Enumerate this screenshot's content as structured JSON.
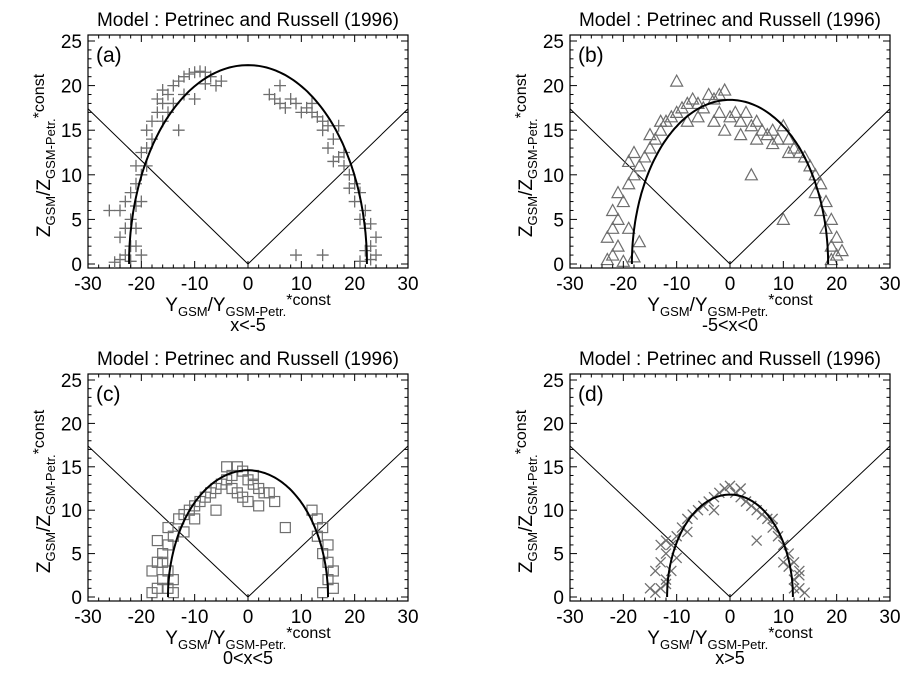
{
  "panel_title_model": "Model : Petrinec and Russell (1996)",
  "x_axis_main": "Y",
  "x_axis_sub1": "GSM",
  "x_axis_mid": "/Y",
  "x_axis_sub2": "GSM-Petr.",
  "x_axis_tail": "*const",
  "y_axis_main": "Z",
  "y_axis_sub1": "GSM",
  "y_axis_mid": "/Z",
  "y_axis_sub2": "GSM-Petr.",
  "y_axis_tail": "*const",
  "colors": {
    "points": "#6e6e6e",
    "curve": "#000000",
    "axes": "#000000"
  },
  "chart_data": [
    {
      "type": "scatter",
      "panel_label": "(a)",
      "title": "Model : Petrinec and Russell (1996)",
      "condition": "x<-5",
      "marker": "plus",
      "xlim": [
        -30,
        30
      ],
      "ylim": [
        0,
        25
      ],
      "xticks": [
        -30,
        -20,
        -10,
        0,
        10,
        20,
        30
      ],
      "yticks": [
        0,
        5,
        10,
        15,
        20,
        25
      ],
      "model_curve_semi_axes": {
        "y": 22.3,
        "z": 22.3
      },
      "reference_lines_slope": 0.58,
      "points": [
        [
          -25,
          0.2
        ],
        [
          -24,
          0.5
        ],
        [
          -23,
          1
        ],
        [
          -22,
          2
        ],
        [
          -24,
          3
        ],
        [
          -23,
          4
        ],
        [
          -22,
          5
        ],
        [
          -24,
          6
        ],
        [
          -21,
          6.5
        ],
        [
          -22,
          8
        ],
        [
          -21,
          9
        ],
        [
          -20,
          10
        ],
        [
          -21,
          11
        ],
        [
          -20,
          12.5
        ],
        [
          -19,
          13
        ],
        [
          -18,
          14
        ],
        [
          -19,
          15
        ],
        [
          -18,
          16
        ],
        [
          -17,
          17
        ],
        [
          -16,
          18
        ],
        [
          -17,
          18.5
        ],
        [
          -15,
          19
        ],
        [
          -16,
          19.5
        ],
        [
          -14,
          20
        ],
        [
          -13,
          20.5
        ],
        [
          -12,
          21
        ],
        [
          -11,
          21.3
        ],
        [
          -10,
          21.5
        ],
        [
          -9,
          21.6
        ],
        [
          -8,
          21.5
        ],
        [
          -7,
          21
        ],
        [
          -8,
          20.2
        ],
        [
          -6,
          20
        ],
        [
          -5,
          20.5
        ],
        [
          -12,
          19
        ],
        [
          -10,
          18.5
        ],
        [
          -14,
          18
        ],
        [
          -13,
          15
        ],
        [
          -15,
          17
        ],
        [
          -16,
          16
        ],
        [
          -19,
          11
        ],
        [
          -20,
          7
        ],
        [
          -21,
          4
        ],
        [
          -26,
          6
        ],
        [
          -23,
          7
        ],
        [
          -21,
          2
        ],
        [
          -20,
          1
        ],
        [
          -22,
          0.3
        ],
        [
          4,
          19
        ],
        [
          5,
          18.5
        ],
        [
          6,
          18
        ],
        [
          7,
          17.5
        ],
        [
          8,
          18.5
        ],
        [
          9,
          18
        ],
        [
          10,
          17
        ],
        [
          11,
          17.5
        ],
        [
          12,
          17
        ],
        [
          13,
          16.5
        ],
        [
          14,
          16
        ],
        [
          15,
          15.5
        ],
        [
          14,
          15
        ],
        [
          16,
          14
        ],
        [
          15,
          13
        ],
        [
          17,
          12
        ],
        [
          16,
          11.5
        ],
        [
          18,
          11
        ],
        [
          19,
          10
        ],
        [
          20,
          9
        ],
        [
          19,
          8.5
        ],
        [
          21,
          8
        ],
        [
          20,
          7
        ],
        [
          22,
          6
        ],
        [
          21,
          5
        ],
        [
          23,
          4.5
        ],
        [
          22,
          4
        ],
        [
          24,
          3
        ],
        [
          23,
          2
        ],
        [
          22,
          1.5
        ],
        [
          24,
          1
        ],
        [
          23,
          0.5
        ],
        [
          21,
          0.3
        ],
        [
          14,
          1
        ],
        [
          9,
          1
        ],
        [
          18,
          12.5
        ],
        [
          17,
          15.5
        ],
        [
          12,
          18
        ],
        [
          6,
          20
        ]
      ]
    },
    {
      "type": "scatter",
      "panel_label": "(b)",
      "title": "Model : Petrinec and Russell (1996)",
      "condition": "-5<x<0",
      "marker": "triangle",
      "xlim": [
        -30,
        30
      ],
      "ylim": [
        0,
        25
      ],
      "xticks": [
        -30,
        -20,
        -10,
        0,
        10,
        20,
        30
      ],
      "yticks": [
        0,
        5,
        10,
        15,
        20,
        25
      ],
      "model_curve_semi_axes": {
        "y": 18.4,
        "z": 18.4
      },
      "reference_lines_slope": 0.58,
      "points": [
        [
          -23,
          0.5
        ],
        [
          -22,
          1
        ],
        [
          -21,
          2
        ],
        [
          -23,
          3
        ],
        [
          -22,
          4
        ],
        [
          -21,
          5
        ],
        [
          -22,
          6
        ],
        [
          -20,
          7
        ],
        [
          -21,
          8
        ],
        [
          -19,
          9
        ],
        [
          -18,
          10
        ],
        [
          -17,
          11
        ],
        [
          -19,
          11.5
        ],
        [
          -16,
          12
        ],
        [
          -18,
          12.5
        ],
        [
          -15,
          13
        ],
        [
          -14,
          14
        ],
        [
          -13,
          15
        ],
        [
          -12,
          16
        ],
        [
          -11,
          16.5
        ],
        [
          -10,
          17
        ],
        [
          -9,
          17.5
        ],
        [
          -10,
          20.5
        ],
        [
          -8,
          18
        ],
        [
          -7,
          18.5
        ],
        [
          -6,
          18
        ],
        [
          -5,
          17.5
        ],
        [
          -4,
          19
        ],
        [
          -3,
          18.5
        ],
        [
          -2,
          19
        ],
        [
          -1,
          19.5
        ],
        [
          -2,
          17
        ],
        [
          0,
          16.5
        ],
        [
          1,
          17
        ],
        [
          2,
          16
        ],
        [
          3,
          17
        ],
        [
          4,
          15.5
        ],
        [
          5,
          16
        ],
        [
          6,
          15
        ],
        [
          7,
          14.5
        ],
        [
          8,
          15
        ],
        [
          9,
          14
        ],
        [
          10,
          15.5
        ],
        [
          11,
          14
        ],
        [
          12,
          13
        ],
        [
          13,
          12.5
        ],
        [
          14,
          12
        ],
        [
          15,
          11
        ],
        [
          16,
          10
        ],
        [
          17,
          9
        ],
        [
          16,
          8
        ],
        [
          18,
          7
        ],
        [
          17,
          6
        ],
        [
          19,
          5
        ],
        [
          18,
          4
        ],
        [
          20,
          3
        ],
        [
          19,
          2
        ],
        [
          21,
          1.5
        ],
        [
          20,
          1
        ],
        [
          19,
          0.5
        ],
        [
          -20,
          0.3
        ],
        [
          -18,
          0.8
        ],
        [
          -15,
          14.5
        ],
        [
          -13,
          16
        ],
        [
          -8,
          16
        ],
        [
          -6,
          16.5
        ],
        [
          -3,
          16
        ],
        [
          -1,
          15
        ],
        [
          2,
          14.5
        ],
        [
          5,
          14
        ],
        [
          8,
          13.5
        ],
        [
          11,
          12.5
        ],
        [
          4,
          10
        ],
        [
          10,
          5
        ],
        [
          -17,
          2.5
        ],
        [
          -19,
          4
        ]
      ]
    },
    {
      "type": "scatter",
      "panel_label": "(c)",
      "title": "Model : Petrinec and Russell (1996)",
      "condition": "0<x<5",
      "marker": "square",
      "xlim": [
        -30,
        30
      ],
      "ylim": [
        0,
        25
      ],
      "xticks": [
        -30,
        -20,
        -10,
        0,
        10,
        20,
        30
      ],
      "yticks": [
        0,
        5,
        10,
        15,
        20,
        25
      ],
      "model_curve_semi_axes": {
        "y": 15.0,
        "z": 14.6
      },
      "reference_lines_slope": 0.58,
      "points": [
        [
          -18,
          0.5
        ],
        [
          -17,
          1
        ],
        [
          -16,
          2
        ],
        [
          -18,
          3
        ],
        [
          -17,
          4
        ],
        [
          -16,
          5
        ],
        [
          -15,
          6
        ],
        [
          -17,
          6.5
        ],
        [
          -14,
          7
        ],
        [
          -15,
          8
        ],
        [
          -13,
          9
        ],
        [
          -12,
          9.5
        ],
        [
          -11,
          10
        ],
        [
          -10,
          10.5
        ],
        [
          -9,
          11
        ],
        [
          -8,
          11.5
        ],
        [
          -7,
          12
        ],
        [
          -6,
          12.5
        ],
        [
          -5,
          13
        ],
        [
          -4,
          13.5
        ],
        [
          -3,
          14
        ],
        [
          -2,
          15
        ],
        [
          -1,
          14.5
        ],
        [
          0,
          13.5
        ],
        [
          1,
          13
        ],
        [
          2,
          12.5
        ],
        [
          3,
          12
        ],
        [
          4,
          12
        ],
        [
          5,
          11
        ],
        [
          -2,
          12
        ],
        [
          -1,
          11.5
        ],
        [
          0,
          11
        ],
        [
          2,
          10.5
        ],
        [
          -6,
          10
        ],
        [
          -10,
          9
        ],
        [
          -12,
          7.5
        ],
        [
          -16,
          4
        ],
        [
          -15,
          3
        ],
        [
          -14,
          2
        ],
        [
          -15,
          1
        ],
        [
          -14,
          0.5
        ],
        [
          12,
          10
        ],
        [
          13,
          9
        ],
        [
          14,
          8
        ],
        [
          13,
          7
        ],
        [
          15,
          6
        ],
        [
          14,
          5
        ],
        [
          15,
          4
        ],
        [
          16,
          3
        ],
        [
          15,
          2
        ],
        [
          16,
          1
        ],
        [
          14,
          0.5
        ],
        [
          7,
          8
        ],
        [
          -3,
          12.5
        ],
        [
          1,
          14
        ],
        [
          -4,
          15
        ]
      ]
    },
    {
      "type": "scatter",
      "panel_label": "(d)",
      "title": "Model : Petrinec and Russell (1996)",
      "condition": "x>5",
      "marker": "cross",
      "xlim": [
        -30,
        30
      ],
      "ylim": [
        0,
        25
      ],
      "xticks": [
        -30,
        -20,
        -10,
        0,
        10,
        20,
        30
      ],
      "yticks": [
        0,
        5,
        10,
        15,
        20,
        25
      ],
      "model_curve_semi_axes": {
        "y": 11.8,
        "z": 11.8
      },
      "reference_lines_slope": 0.58,
      "points": [
        [
          -14,
          0.5
        ],
        [
          -13,
          1
        ],
        [
          -12,
          2
        ],
        [
          -14,
          3
        ],
        [
          -13,
          4
        ],
        [
          -12,
          5
        ],
        [
          -11,
          6
        ],
        [
          -12,
          6.5
        ],
        [
          -10,
          7
        ],
        [
          -9,
          8
        ],
        [
          -8,
          9
        ],
        [
          -7,
          9.5
        ],
        [
          -6,
          10
        ],
        [
          -5,
          10.5
        ],
        [
          -4,
          11
        ],
        [
          -3,
          11.5
        ],
        [
          -2,
          12
        ],
        [
          -1,
          12.5
        ],
        [
          0,
          12.8
        ],
        [
          1,
          12
        ],
        [
          2,
          11.5
        ],
        [
          3,
          11
        ],
        [
          4,
          10.5
        ],
        [
          5,
          10
        ],
        [
          6,
          9.5
        ],
        [
          7,
          9
        ],
        [
          8,
          8
        ],
        [
          9,
          7
        ],
        [
          10,
          6
        ],
        [
          11,
          5
        ],
        [
          12,
          4
        ],
        [
          13,
          3
        ],
        [
          12,
          2
        ],
        [
          13,
          1
        ],
        [
          14,
          0.5
        ],
        [
          -11,
          3
        ],
        [
          -12,
          1.5
        ],
        [
          -10,
          4.5
        ],
        [
          11,
          3.5
        ],
        [
          12,
          1
        ],
        [
          5,
          6.5
        ],
        [
          13,
          2.5
        ],
        [
          -15,
          1
        ],
        [
          -8,
          7.5
        ],
        [
          8,
          9
        ],
        [
          -3,
          10
        ],
        [
          2,
          12.5
        ],
        [
          10,
          4
        ],
        [
          -13,
          6
        ]
      ]
    }
  ]
}
